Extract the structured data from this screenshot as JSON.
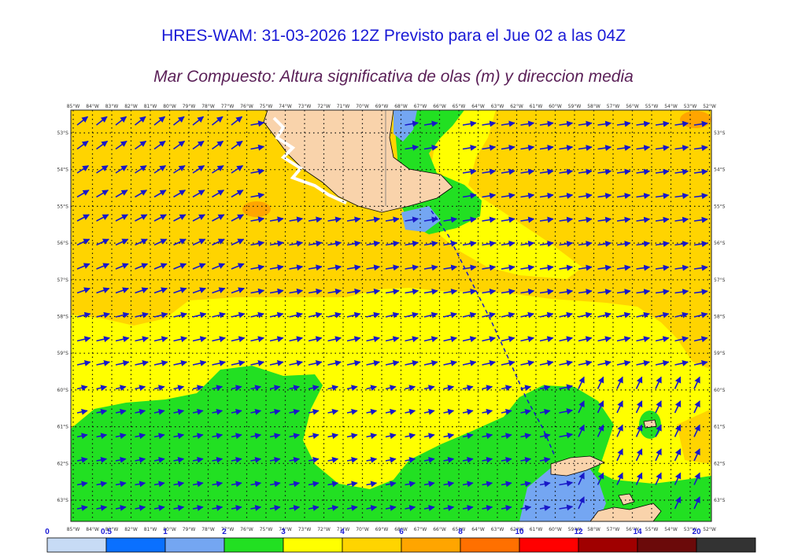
{
  "header": {
    "title": "HRES-WAM: 31-03-2026 12Z Previsto para el Jue 02 a las 04Z",
    "subtitle": "Mar Compuesto: Altura significativa de olas (m) y direccion media"
  },
  "map": {
    "lon_labels": [
      "85°W",
      "84°W",
      "83°W",
      "82°W",
      "81°W",
      "80°W",
      "79°W",
      "78°W",
      "77°W",
      "76°W",
      "75°W",
      "74°W",
      "73°W",
      "72°W",
      "71°W",
      "70°W",
      "69°W",
      "68°W",
      "67°W",
      "66°W",
      "65°W",
      "64°W",
      "63°W",
      "62°W",
      "61°W",
      "60°W",
      "59°W",
      "58°W",
      "57°W",
      "56°W",
      "55°W",
      "54°W",
      "53°W",
      "52°W"
    ],
    "lat_labels": [
      "53°S",
      "54°S",
      "55°S",
      "56°S",
      "57°S",
      "58°S",
      "59°S",
      "60°S",
      "61°S",
      "62°S",
      "63°S"
    ],
    "arrow_color": "#1818c8",
    "land_color": "#f9d3ab"
  },
  "colorbar": {
    "ticks": [
      "0",
      "0.5",
      "1",
      "2",
      "3",
      "4",
      "6",
      "8",
      "10",
      "12",
      "14",
      "20"
    ],
    "colors": [
      "#c7dbf5",
      "#0a70ff",
      "#74a6f2",
      "#22e022",
      "#ffff00",
      "#ffd400",
      "#ffa500",
      "#ff7000",
      "#ff0000",
      "#a00000",
      "#6b0a0a",
      "#333333"
    ]
  }
}
